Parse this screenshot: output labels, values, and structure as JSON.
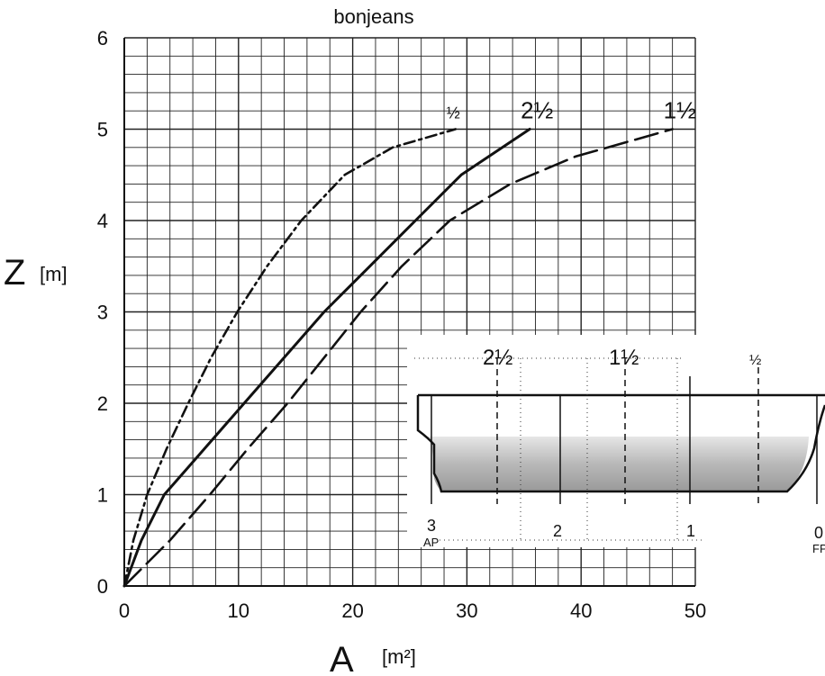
{
  "chart_data": {
    "type": "line",
    "title": "bonjeans",
    "xlabel": "A",
    "xunit": "[m²]",
    "ylabel": "Z",
    "yunit": "[m]",
    "xlim": [
      0,
      50
    ],
    "ylim": [
      0,
      6
    ],
    "grid": true,
    "x_ticks": [
      "0",
      "10",
      "20",
      "30",
      "40",
      "50"
    ],
    "y_ticks": [
      "0",
      "1",
      "2",
      "3",
      "4",
      "5",
      "6"
    ],
    "series": [
      {
        "name": "½",
        "style": "dash-dot",
        "points": [
          [
            0,
            0
          ],
          [
            0.8,
            0.5
          ],
          [
            2,
            1
          ],
          [
            3.7,
            1.5
          ],
          [
            5.6,
            2
          ],
          [
            7.6,
            2.5
          ],
          [
            9.9,
            3
          ],
          [
            12.5,
            3.5
          ],
          [
            15.5,
            4
          ],
          [
            19.3,
            4.5
          ],
          [
            23.5,
            4.8
          ],
          [
            29,
            5
          ]
        ]
      },
      {
        "name": "2½",
        "style": "solid",
        "points": [
          [
            0,
            0
          ],
          [
            1.5,
            0.5
          ],
          [
            3.5,
            1
          ],
          [
            7,
            1.5
          ],
          [
            10.5,
            2
          ],
          [
            14,
            2.5
          ],
          [
            17.5,
            3
          ],
          [
            21.5,
            3.5
          ],
          [
            25.5,
            4
          ],
          [
            29.5,
            4.5
          ],
          [
            35.5,
            5
          ]
        ]
      },
      {
        "name": "1½",
        "style": "long-dash",
        "points": [
          [
            0,
            0
          ],
          [
            4,
            0.5
          ],
          [
            7.5,
            1
          ],
          [
            10.8,
            1.5
          ],
          [
            14.3,
            2
          ],
          [
            17.5,
            2.5
          ],
          [
            20.7,
            3
          ],
          [
            24.3,
            3.5
          ],
          [
            28.5,
            4
          ],
          [
            33.8,
            4.4
          ],
          [
            39.5,
            4.7
          ],
          [
            48,
            5
          ]
        ]
      }
    ]
  },
  "inset": {
    "top_labels": [
      "2½",
      "1½",
      "½"
    ],
    "bottom_labels": [
      "3",
      "2",
      "1",
      "0"
    ],
    "bottom_sub_labels": [
      "AP",
      "FP"
    ]
  }
}
